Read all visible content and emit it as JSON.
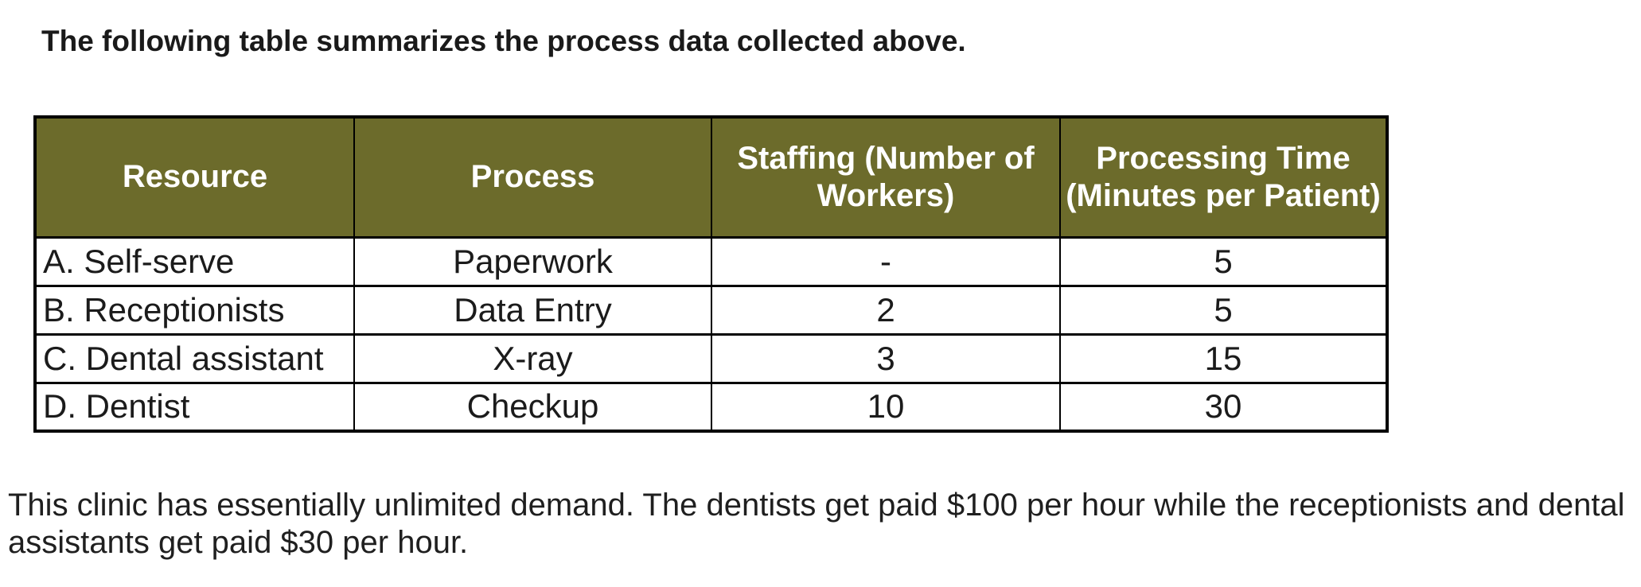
{
  "title": "The following table summarizes the process data collected above.",
  "table": {
    "headers": [
      {
        "label": "Resource"
      },
      {
        "label": "Process"
      },
      {
        "label": "Staffing (Number of Workers)"
      },
      {
        "label": "Processing Time (Minutes per Patient)"
      }
    ],
    "rows": [
      {
        "cells": [
          "A. Self-serve",
          "Paperwork",
          "-",
          "5"
        ]
      },
      {
        "cells": [
          "B. Receptionists",
          "Data Entry",
          "2",
          "5"
        ]
      },
      {
        "cells": [
          "C. Dental assistant",
          "X-ray",
          "3",
          "15"
        ]
      },
      {
        "cells": [
          "D. Dentist",
          "Checkup",
          "10",
          "30"
        ]
      }
    ]
  },
  "footer": {
    "lines": [
      "This clinic has essentially unlimited demand. The dentists get paid $100 per hour while the receptionists and dental",
      "assistants get paid $30 per hour."
    ]
  },
  "colors": {
    "header_bg": "#6C6B2B",
    "header_text": "#FFFFFF",
    "border": "#000000",
    "text": "#1C1C1C",
    "page_bg": "#FFFFFF"
  }
}
